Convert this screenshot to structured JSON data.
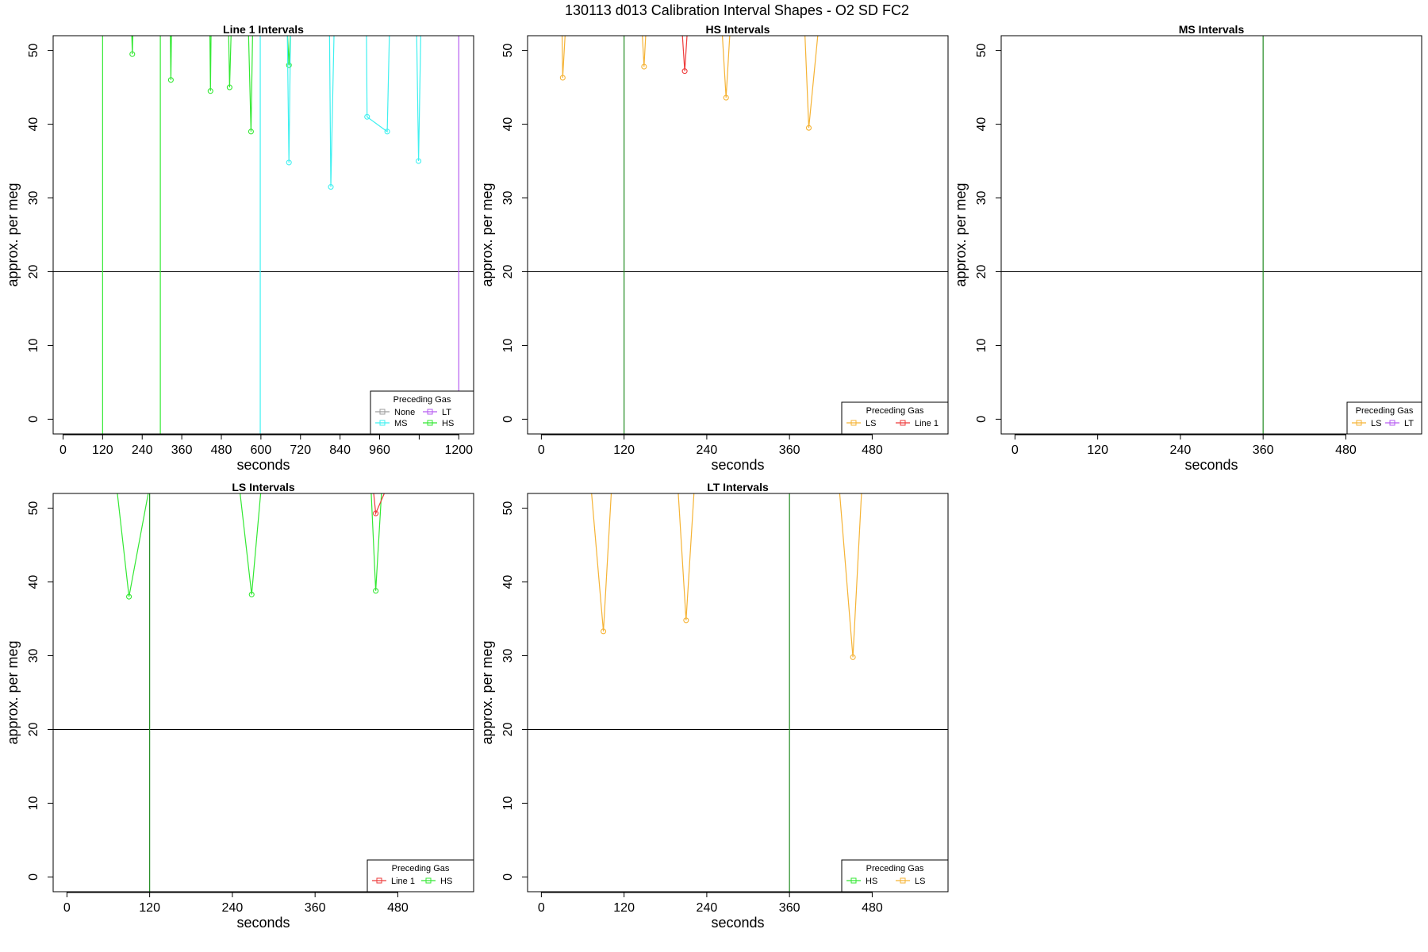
{
  "figure_title": "130113   d013   Calibration Interval Shapes - O2 SD FC2",
  "colors": {
    "None": "#9e9e9e",
    "LT": "#b65cf0",
    "MS": "#3ff0f0",
    "HS": "#33e833",
    "LS": "#f5b335",
    "Line 1": "#ee3b3b",
    "refline_v": "#228b22",
    "refline_h": "#000000"
  },
  "chart_data": [
    {
      "type": "line",
      "title": "Line 1 Intervals",
      "xlabel": "seconds",
      "ylabel": "approx. per meg",
      "xlim": [
        -30,
        1245
      ],
      "ylim": [
        -2,
        52
      ],
      "xticks": [
        0,
        120,
        240,
        360,
        480,
        600,
        720,
        840,
        960,
        1080,
        1200
      ],
      "xtick_labels": [
        "0",
        "120",
        "240",
        "360",
        "480",
        "600",
        "720",
        "840",
        "960",
        "",
        "1200"
      ],
      "yticks": [
        0,
        10,
        20,
        30,
        40,
        50
      ],
      "hline": 20,
      "vlines": [
        {
          "x": 120,
          "gas": "HS"
        },
        {
          "x": 295,
          "gas": "HS"
        },
        {
          "x": 598,
          "gas": "MS"
        },
        {
          "x": 1200,
          "gas": "LT"
        }
      ],
      "legend": {
        "title": "Preceding Gas",
        "entries": [
          "None",
          "LT",
          "MS",
          "HS"
        ],
        "columns": 2,
        "position": "bottom-right"
      },
      "series": [
        {
          "gas": "HS",
          "x": [
            208,
            210,
            212
          ],
          "y": [
            53,
            49.5,
            53
          ]
        },
        {
          "gas": "HS",
          "x": [
            325,
            327,
            329
          ],
          "y": [
            53,
            46,
            53
          ]
        },
        {
          "gas": "HS",
          "x": [
            445,
            447,
            449
          ],
          "y": [
            53,
            44.5,
            53
          ]
        },
        {
          "gas": "HS",
          "x": [
            502,
            505,
            510
          ],
          "y": [
            53,
            45,
            53
          ]
        },
        {
          "gas": "HS",
          "x": [
            562,
            570,
            575
          ],
          "y": [
            53,
            39,
            53
          ]
        },
        {
          "gas": "HS",
          "x": [
            680,
            685,
            690
          ],
          "y": [
            53,
            48,
            53
          ]
        },
        {
          "gas": "MS",
          "x": [
            680,
            685,
            690
          ],
          "y": [
            53,
            34.8,
            53
          ]
        },
        {
          "gas": "MS",
          "x": [
            808,
            812,
            822
          ],
          "y": [
            53,
            31.5,
            53
          ]
        },
        {
          "gas": "MS",
          "x": [
            920,
            922,
            983,
            990
          ],
          "y": [
            53,
            41,
            39,
            53
          ]
        },
        {
          "gas": "MS",
          "x": [
            1072,
            1078,
            1085
          ],
          "y": [
            53,
            35,
            53
          ]
        }
      ]
    },
    {
      "type": "line",
      "title": "HS Intervals",
      "xlabel": "seconds",
      "ylabel": "approx. per meg",
      "xlim": [
        -20,
        590
      ],
      "ylim": [
        -2,
        52
      ],
      "xticks": [
        0,
        120,
        240,
        360,
        480
      ],
      "xtick_labels": [
        "0",
        "120",
        "240",
        "360",
        "480"
      ],
      "yticks": [
        0,
        10,
        20,
        30,
        40,
        50
      ],
      "hline": 20,
      "vlines": [
        {
          "x": 120,
          "gas": "HS"
        }
      ],
      "legend": {
        "title": "Preceding Gas",
        "entries": [
          "LS",
          "Line 1"
        ],
        "columns": 2,
        "position": "bottom-right"
      },
      "series": [
        {
          "gas": "LS",
          "x": [
            30,
            31,
            35
          ],
          "y": [
            53,
            46.3,
            53
          ]
        },
        {
          "gas": "LS",
          "x": [
            146,
            149,
            152
          ],
          "y": [
            53,
            47.8,
            53
          ]
        },
        {
          "gas": "Line 1",
          "x": [
            204,
            208,
            212
          ],
          "y": [
            53,
            47.2,
            53
          ]
        },
        {
          "gas": "LS",
          "x": [
            262,
            268,
            274
          ],
          "y": [
            53,
            43.6,
            53
          ]
        },
        {
          "gas": "LS",
          "x": [
            382,
            388,
            402
          ],
          "y": [
            53,
            39.5,
            53
          ]
        }
      ]
    },
    {
      "type": "line",
      "title": "MS Intervals",
      "xlabel": "seconds",
      "ylabel": "approx. per meg",
      "xlim": [
        -20,
        590
      ],
      "ylim": [
        -2,
        52
      ],
      "xticks": [
        0,
        120,
        240,
        360,
        480
      ],
      "xtick_labels": [
        "0",
        "120",
        "240",
        "360",
        "480"
      ],
      "yticks": [
        0,
        10,
        20,
        30,
        40,
        50
      ],
      "hline": 20,
      "vlines": [
        {
          "x": 360,
          "gas": "HS"
        }
      ],
      "legend": {
        "title": "Preceding Gas",
        "entries": [
          "LS",
          "LT"
        ],
        "columns": 2,
        "position": "bottom-right"
      },
      "series": []
    },
    {
      "type": "line",
      "title": "LS Intervals",
      "xlabel": "seconds",
      "ylabel": "approx. per meg",
      "xlim": [
        -20,
        590
      ],
      "ylim": [
        -2,
        52
      ],
      "xticks": [
        0,
        120,
        240,
        360,
        480
      ],
      "xtick_labels": [
        "0",
        "120",
        "240",
        "360",
        "480"
      ],
      "yticks": [
        0,
        10,
        20,
        30,
        40,
        50
      ],
      "hline": 20,
      "vlines": [
        {
          "x": 120,
          "gas": "HS"
        }
      ],
      "legend": {
        "title": "Preceding Gas",
        "entries": [
          "Line 1",
          "HS"
        ],
        "columns": 2,
        "position": "bottom-right"
      },
      "series": [
        {
          "gas": "HS",
          "x": [
            72,
            90,
            120
          ],
          "y": [
            53,
            38,
            53
          ]
        },
        {
          "gas": "HS",
          "x": [
            250,
            268,
            282
          ],
          "y": [
            53,
            38.3,
            53
          ]
        },
        {
          "gas": "HS",
          "x": [
            441,
            448,
            457
          ],
          "y": [
            53,
            38.8,
            53
          ]
        },
        {
          "gas": "Line 1",
          "x": [
            444,
            448,
            465
          ],
          "y": [
            53,
            49.3,
            53
          ]
        }
      ]
    },
    {
      "type": "line",
      "title": "LT Intervals",
      "xlabel": "seconds",
      "ylabel": "approx. per meg",
      "xlim": [
        -20,
        590
      ],
      "ylim": [
        -2,
        52
      ],
      "xticks": [
        0,
        120,
        240,
        360,
        480
      ],
      "xtick_labels": [
        "0",
        "120",
        "240",
        "360",
        "480"
      ],
      "yticks": [
        0,
        10,
        20,
        30,
        40,
        50
      ],
      "hline": 20,
      "vlines": [
        {
          "x": 360,
          "gas": "HS"
        }
      ],
      "legend": {
        "title": "Preceding Gas",
        "entries": [
          "HS",
          "LS"
        ],
        "columns": 2,
        "position": "bottom-right"
      },
      "series": [
        {
          "gas": "LS",
          "x": [
            72,
            90,
            102
          ],
          "y": [
            53,
            33.3,
            53
          ]
        },
        {
          "gas": "LS",
          "x": [
            198,
            210,
            222
          ],
          "y": [
            53,
            34.8,
            53
          ]
        },
        {
          "gas": "LS",
          "x": [
            432,
            452,
            465
          ],
          "y": [
            53,
            29.8,
            53
          ]
        }
      ]
    }
  ]
}
